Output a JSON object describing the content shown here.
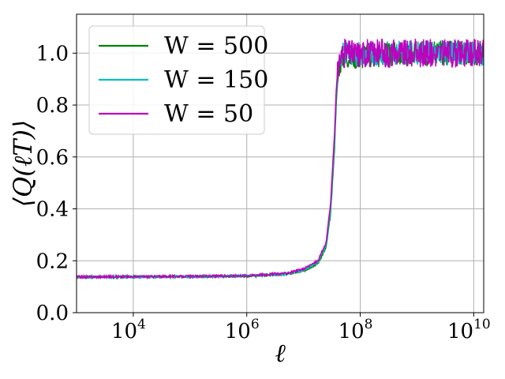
{
  "chart_data": {
    "type": "line",
    "xlabel": "ℓ",
    "ylabel": "⟨Q(ℓT)⟩",
    "xscale": "log",
    "xlim": [
      1000,
      15000000000
    ],
    "ylim": [
      0.0,
      1.15
    ],
    "grid": true,
    "legend_position": "top-left",
    "x_ticks": [
      {
        "base": "10",
        "exp": "4",
        "value": 10000
      },
      {
        "base": "10",
        "exp": "6",
        "value": 1000000
      },
      {
        "base": "10",
        "exp": "8",
        "value": 100000000
      },
      {
        "base": "10",
        "exp": "10",
        "value": 10000000000
      }
    ],
    "y_ticks": [
      {
        "label": "0.0",
        "value": 0.0
      },
      {
        "label": "0.2",
        "value": 0.2
      },
      {
        "label": "0.4",
        "value": 0.4
      },
      {
        "label": "0.6",
        "value": 0.6
      },
      {
        "label": "0.8",
        "value": 0.8
      },
      {
        "label": "1.0",
        "value": 1.0
      }
    ],
    "series": [
      {
        "name": "W = 500",
        "color": "#008000",
        "noise_amplitude": 0.03,
        "points": [
          [
            1000,
            0.137
          ],
          [
            10000,
            0.138
          ],
          [
            100000,
            0.139
          ],
          [
            1000000,
            0.141
          ],
          [
            5000000,
            0.148
          ],
          [
            10000000,
            0.16
          ],
          [
            18000000,
            0.19
          ],
          [
            25000000,
            0.25
          ],
          [
            30000000,
            0.38
          ],
          [
            35000000,
            0.62
          ],
          [
            38000000,
            0.82
          ],
          [
            42000000,
            0.95
          ],
          [
            50000000,
            0.99
          ],
          [
            100000000,
            0.985
          ],
          [
            1000000000,
            1.0
          ],
          [
            15000000000,
            1.0
          ]
        ]
      },
      {
        "name": "W = 150",
        "color": "#00bfbf",
        "noise_amplitude": 0.03,
        "points": [
          [
            1000,
            0.137
          ],
          [
            10000,
            0.138
          ],
          [
            100000,
            0.139
          ],
          [
            1000000,
            0.142
          ],
          [
            5000000,
            0.15
          ],
          [
            10000000,
            0.163
          ],
          [
            18000000,
            0.195
          ],
          [
            25000000,
            0.26
          ],
          [
            30000000,
            0.4
          ],
          [
            35000000,
            0.65
          ],
          [
            38000000,
            0.85
          ],
          [
            42000000,
            0.96
          ],
          [
            50000000,
            0.995
          ],
          [
            100000000,
            1.0
          ],
          [
            1000000000,
            1.0
          ],
          [
            15000000000,
            1.0
          ]
        ]
      },
      {
        "name": "W = 50",
        "color": "#bf00bf",
        "noise_amplitude": 0.035,
        "points": [
          [
            1000,
            0.138
          ],
          [
            10000,
            0.139
          ],
          [
            100000,
            0.14
          ],
          [
            1000000,
            0.143
          ],
          [
            5000000,
            0.152
          ],
          [
            10000000,
            0.168
          ],
          [
            18000000,
            0.2
          ],
          [
            25000000,
            0.27
          ],
          [
            30000000,
            0.42
          ],
          [
            35000000,
            0.68
          ],
          [
            38000000,
            0.87
          ],
          [
            42000000,
            0.97
          ],
          [
            50000000,
            1.0
          ],
          [
            100000000,
            1.0
          ],
          [
            1000000000,
            1.0
          ],
          [
            15000000000,
            1.0
          ]
        ]
      }
    ]
  }
}
